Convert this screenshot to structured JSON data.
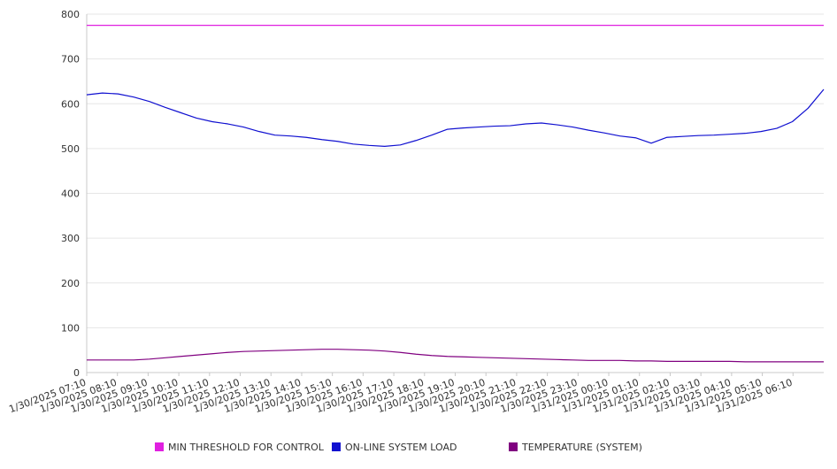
{
  "chart_data": {
    "type": "line",
    "title": "",
    "xlabel": "",
    "ylabel": "",
    "ylim": [
      0,
      800
    ],
    "yticks": [
      0,
      100,
      200,
      300,
      400,
      500,
      600,
      700,
      800
    ],
    "grid": true,
    "legend_position": "bottom",
    "x_tick_labels": [
      "1/30/2025 07:10",
      "1/30/2025 08:10",
      "1/30/2025 09:10",
      "1/30/2025 10:10",
      "1/30/2025 11:10",
      "1/30/2025 12:10",
      "1/30/2025 13:10",
      "1/30/2025 14:10",
      "1/30/2025 15:10",
      "1/30/2025 16:10",
      "1/30/2025 17:10",
      "1/30/2025 18:10",
      "1/30/2025 19:10",
      "1/30/2025 20:10",
      "1/30/2025 21:10",
      "1/30/2025 22:10",
      "1/30/2025 23:10",
      "1/31/2025 00:10",
      "1/31/2025 01:10",
      "1/31/2025 02:10",
      "1/31/2025 03:10",
      "1/31/2025 04:10",
      "1/31/2025 05:10",
      "1/31/2025 06:10"
    ],
    "x": [
      "1/30/2025 07:10",
      "1/30/2025 07:40",
      "1/30/2025 08:10",
      "1/30/2025 08:40",
      "1/30/2025 09:10",
      "1/30/2025 09:40",
      "1/30/2025 10:10",
      "1/30/2025 10:40",
      "1/30/2025 11:10",
      "1/30/2025 11:40",
      "1/30/2025 12:10",
      "1/30/2025 12:40",
      "1/30/2025 13:10",
      "1/30/2025 13:40",
      "1/30/2025 14:10",
      "1/30/2025 14:40",
      "1/30/2025 15:10",
      "1/30/2025 15:40",
      "1/30/2025 16:10",
      "1/30/2025 16:40",
      "1/30/2025 17:10",
      "1/30/2025 17:40",
      "1/30/2025 18:10",
      "1/30/2025 18:40",
      "1/30/2025 19:10",
      "1/30/2025 19:40",
      "1/30/2025 20:10",
      "1/30/2025 20:40",
      "1/30/2025 21:10",
      "1/30/2025 21:40",
      "1/30/2025 22:10",
      "1/30/2025 22:40",
      "1/30/2025 23:10",
      "1/30/2025 23:40",
      "1/31/2025 00:10",
      "1/31/2025 00:40",
      "1/31/2025 01:10",
      "1/31/2025 01:40",
      "1/31/2025 02:10",
      "1/31/2025 02:40",
      "1/31/2025 03:10",
      "1/31/2025 03:40",
      "1/31/2025 04:10",
      "1/31/2025 04:40",
      "1/31/2025 05:10",
      "1/31/2025 05:40",
      "1/31/2025 06:10",
      "1/31/2025 06:40"
    ],
    "series": [
      {
        "name": "MIN THRESHOLD FOR CONTROL",
        "color": "#e020e0",
        "values": [
          775,
          775,
          775,
          775,
          775,
          775,
          775,
          775,
          775,
          775,
          775,
          775,
          775,
          775,
          775,
          775,
          775,
          775,
          775,
          775,
          775,
          775,
          775,
          775,
          775,
          775,
          775,
          775,
          775,
          775,
          775,
          775,
          775,
          775,
          775,
          775,
          775,
          775,
          775,
          775,
          775,
          775,
          775,
          775,
          775,
          775,
          775,
          775
        ]
      },
      {
        "name": "ON-LINE SYSTEM LOAD",
        "color": "#1010d0",
        "values": [
          620,
          624,
          622,
          615,
          605,
          592,
          580,
          568,
          560,
          555,
          548,
          538,
          530,
          528,
          525,
          520,
          516,
          510,
          507,
          505,
          508,
          518,
          530,
          543,
          546,
          548,
          550,
          551,
          555,
          557,
          553,
          548,
          541,
          535,
          528,
          524,
          512,
          525,
          527,
          529,
          530,
          532,
          534,
          538,
          545,
          560,
          590,
          632
        ]
      },
      {
        "name": "TEMPERATURE (SYSTEM)",
        "color": "#800080",
        "values": [
          28,
          28,
          28,
          28,
          30,
          33,
          36,
          39,
          42,
          45,
          47,
          48,
          49,
          50,
          51,
          52,
          52,
          51,
          50,
          48,
          45,
          41,
          38,
          36,
          35,
          34,
          33,
          32,
          31,
          30,
          29,
          28,
          27,
          27,
          27,
          26,
          26,
          25,
          25,
          25,
          25,
          25,
          24,
          24,
          24,
          24,
          24,
          24
        ]
      }
    ]
  }
}
